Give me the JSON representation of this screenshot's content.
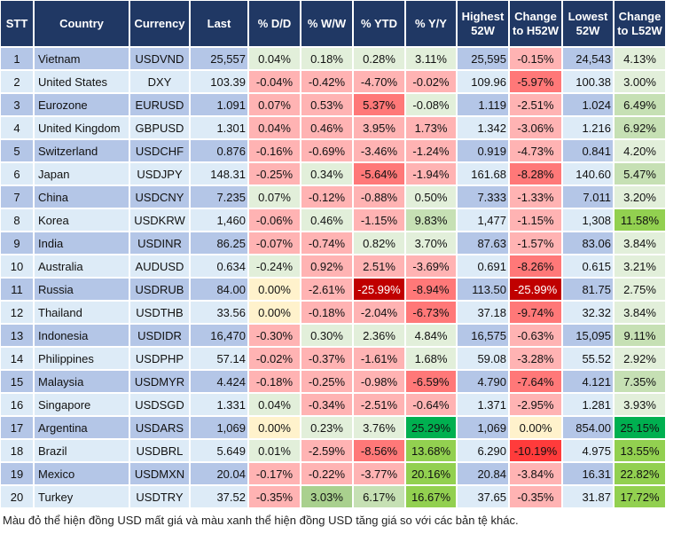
{
  "colors": {
    "header": "#203864",
    "stripe_odd": "#b4c6e7",
    "stripe_even": "#ddebf7",
    "g1": "#e2efda",
    "g2": "#c6e0b4",
    "g3": "#a9d08e",
    "g4": "#92d050",
    "g5": "#00b050",
    "p1": "#ffb3b3",
    "p2": "#ff7878",
    "p3": "#ff3b3b",
    "p4": "#c00000",
    "y": "#fff2cc"
  },
  "headers": [
    "STT",
    "Country",
    "Currency",
    "Last",
    "% D/D",
    "% W/W",
    "% YTD",
    "% Y/Y",
    "Highest 52W",
    "Change to H52W",
    "Lowest 52W",
    "Change to L52W"
  ],
  "rows": [
    {
      "stt": "1",
      "country": "Vietnam",
      "currency": "USDVND",
      "last": "25,557",
      "dd": "0.04%",
      "ww": "0.18%",
      "ytd": "0.28%",
      "yy": "3.11%",
      "high": "25,595",
      "chh": "-0.15%",
      "low": "24,543",
      "chl": "4.13%",
      "tone": [
        "g1",
        "g1",
        "g1",
        "g1",
        "p1",
        "g1"
      ]
    },
    {
      "stt": "2",
      "country": "United States",
      "currency": "DXY",
      "last": "103.39",
      "dd": "-0.04%",
      "ww": "-0.42%",
      "ytd": "-4.70%",
      "yy": "-0.02%",
      "high": "109.96",
      "chh": "-5.97%",
      "low": "100.38",
      "chl": "3.00%",
      "tone": [
        "p1",
        "p1",
        "p1",
        "p1",
        "p2",
        "g1"
      ]
    },
    {
      "stt": "3",
      "country": "Eurozone",
      "currency": "EURUSD",
      "last": "1.091",
      "dd": "0.07%",
      "ww": "0.53%",
      "ytd": "5.37%",
      "yy": "-0.08%",
      "high": "1.119",
      "chh": "-2.51%",
      "low": "1.024",
      "chl": "6.49%",
      "tone": [
        "p1",
        "p1",
        "p2",
        "g1",
        "p1",
        "g2"
      ]
    },
    {
      "stt": "4",
      "country": "United Kingdom",
      "currency": "GBPUSD",
      "last": "1.301",
      "dd": "0.04%",
      "ww": "0.46%",
      "ytd": "3.95%",
      "yy": "1.73%",
      "high": "1.342",
      "chh": "-3.06%",
      "low": "1.216",
      "chl": "6.92%",
      "tone": [
        "p1",
        "p1",
        "p1",
        "p1",
        "p1",
        "g2"
      ]
    },
    {
      "stt": "5",
      "country": "Switzerland",
      "currency": "USDCHF",
      "last": "0.876",
      "dd": "-0.16%",
      "ww": "-0.69%",
      "ytd": "-3.46%",
      "yy": "-1.24%",
      "high": "0.919",
      "chh": "-4.73%",
      "low": "0.841",
      "chl": "4.20%",
      "tone": [
        "p1",
        "p1",
        "p1",
        "p1",
        "p1",
        "g1"
      ]
    },
    {
      "stt": "6",
      "country": "Japan",
      "currency": "USDJPY",
      "last": "148.31",
      "dd": "-0.25%",
      "ww": "0.34%",
      "ytd": "-5.64%",
      "yy": "-1.94%",
      "high": "161.68",
      "chh": "-8.28%",
      "low": "140.60",
      "chl": "5.47%",
      "tone": [
        "p1",
        "g1",
        "p2",
        "p1",
        "p2",
        "g2"
      ]
    },
    {
      "stt": "7",
      "country": "China",
      "currency": "USDCNY",
      "last": "7.235",
      "dd": "0.07%",
      "ww": "-0.12%",
      "ytd": "-0.88%",
      "yy": "0.50%",
      "high": "7.333",
      "chh": "-1.33%",
      "low": "7.011",
      "chl": "3.20%",
      "tone": [
        "g1",
        "p1",
        "p1",
        "g1",
        "p1",
        "g1"
      ]
    },
    {
      "stt": "8",
      "country": "Korea",
      "currency": "USDKRW",
      "last": "1,460",
      "dd": "-0.06%",
      "ww": "0.46%",
      "ytd": "-1.15%",
      "yy": "9.83%",
      "high": "1,477",
      "chh": "-1.15%",
      "low": "1,308",
      "chl": "11.58%",
      "tone": [
        "p1",
        "g1",
        "p1",
        "g2",
        "p1",
        "g4"
      ]
    },
    {
      "stt": "9",
      "country": "India",
      "currency": "USDINR",
      "last": "86.25",
      "dd": "-0.07%",
      "ww": "-0.74%",
      "ytd": "0.82%",
      "yy": "3.70%",
      "high": "87.63",
      "chh": "-1.57%",
      "low": "83.06",
      "chl": "3.84%",
      "tone": [
        "p1",
        "p1",
        "g1",
        "g1",
        "p1",
        "g1"
      ]
    },
    {
      "stt": "10",
      "country": "Australia",
      "currency": "AUDUSD",
      "last": "0.634",
      "dd": "-0.24%",
      "ww": "0.92%",
      "ytd": "2.51%",
      "yy": "-3.69%",
      "high": "0.691",
      "chh": "-8.26%",
      "low": "0.615",
      "chl": "3.21%",
      "tone": [
        "g1",
        "p1",
        "p1",
        "p1",
        "p2",
        "g1"
      ]
    },
    {
      "stt": "11",
      "country": "Russia",
      "currency": "USDRUB",
      "last": "84.00",
      "dd": "0.00%",
      "ww": "-2.61%",
      "ytd": "-25.99%",
      "yy": "-8.94%",
      "high": "113.50",
      "chh": "-25.99%",
      "low": "81.75",
      "chl": "2.75%",
      "tone": [
        "y",
        "p1",
        "p4",
        "p2",
        "p4",
        "g1"
      ]
    },
    {
      "stt": "12",
      "country": "Thailand",
      "currency": "USDTHB",
      "last": "33.56",
      "dd": "0.00%",
      "ww": "-0.18%",
      "ytd": "-2.04%",
      "yy": "-6.73%",
      "high": "37.18",
      "chh": "-9.74%",
      "low": "32.32",
      "chl": "3.84%",
      "tone": [
        "y",
        "p1",
        "p1",
        "p2",
        "p2",
        "g1"
      ]
    },
    {
      "stt": "13",
      "country": "Indonesia",
      "currency": "USDIDR",
      "last": "16,470",
      "dd": "-0.30%",
      "ww": "0.30%",
      "ytd": "2.36%",
      "yy": "4.84%",
      "high": "16,575",
      "chh": "-0.63%",
      "low": "15,095",
      "chl": "9.11%",
      "tone": [
        "p1",
        "g1",
        "g1",
        "g1",
        "p1",
        "g2"
      ]
    },
    {
      "stt": "14",
      "country": "Philippines",
      "currency": "USDPHP",
      "last": "57.14",
      "dd": "-0.02%",
      "ww": "-0.37%",
      "ytd": "-1.61%",
      "yy": "1.68%",
      "high": "59.08",
      "chh": "-3.28%",
      "low": "55.52",
      "chl": "2.92%",
      "tone": [
        "p1",
        "p1",
        "p1",
        "g1",
        "p1",
        "g1"
      ]
    },
    {
      "stt": "15",
      "country": "Malaysia",
      "currency": "USDMYR",
      "last": "4.424",
      "dd": "-0.18%",
      "ww": "-0.25%",
      "ytd": "-0.98%",
      "yy": "-6.59%",
      "high": "4.790",
      "chh": "-7.64%",
      "low": "4.121",
      "chl": "7.35%",
      "tone": [
        "p1",
        "p1",
        "p1",
        "p2",
        "p2",
        "g2"
      ]
    },
    {
      "stt": "16",
      "country": "Singapore",
      "currency": "USDSGD",
      "last": "1.331",
      "dd": "0.04%",
      "ww": "-0.34%",
      "ytd": "-2.51%",
      "yy": "-0.64%",
      "high": "1.371",
      "chh": "-2.95%",
      "low": "1.281",
      "chl": "3.93%",
      "tone": [
        "g1",
        "p1",
        "p1",
        "p1",
        "p1",
        "g1"
      ]
    },
    {
      "stt": "17",
      "country": "Argentina",
      "currency": "USDARS",
      "last": "1,069",
      "dd": "0.00%",
      "ww": "0.23%",
      "ytd": "3.76%",
      "yy": "25.29%",
      "high": "1,069",
      "chh": "0.00%",
      "low": "854.00",
      "chl": "25.15%",
      "tone": [
        "y",
        "g1",
        "g1",
        "g5",
        "y",
        "g5"
      ]
    },
    {
      "stt": "18",
      "country": "Brazil",
      "currency": "USDBRL",
      "last": "5.649",
      "dd": "0.01%",
      "ww": "-2.59%",
      "ytd": "-8.56%",
      "yy": "13.68%",
      "high": "6.290",
      "chh": "-10.19%",
      "low": "4.975",
      "chl": "13.55%",
      "tone": [
        "g1",
        "p1",
        "p2",
        "g4",
        "p3",
        "g4"
      ]
    },
    {
      "stt": "19",
      "country": "Mexico",
      "currency": "USDMXN",
      "last": "20.04",
      "dd": "-0.17%",
      "ww": "-0.22%",
      "ytd": "-3.77%",
      "yy": "20.16%",
      "high": "20.84",
      "chh": "-3.84%",
      "low": "16.31",
      "chl": "22.82%",
      "tone": [
        "p1",
        "p1",
        "p1",
        "g4",
        "p1",
        "g4"
      ]
    },
    {
      "stt": "20",
      "country": "Turkey",
      "currency": "USDTRY",
      "last": "37.52",
      "dd": "-0.35%",
      "ww": "3.03%",
      "ytd": "6.17%",
      "yy": "16.67%",
      "high": "37.65",
      "chh": "-0.35%",
      "low": "31.87",
      "chl": "17.72%",
      "tone": [
        "p1",
        "g3",
        "g2",
        "g4",
        "p1",
        "g4"
      ]
    }
  ],
  "footnote": "Màu đỏ thể hiện đồng USD mất giá và màu xanh thể hiện đồng USD tăng giá so với các bản tệ khác."
}
